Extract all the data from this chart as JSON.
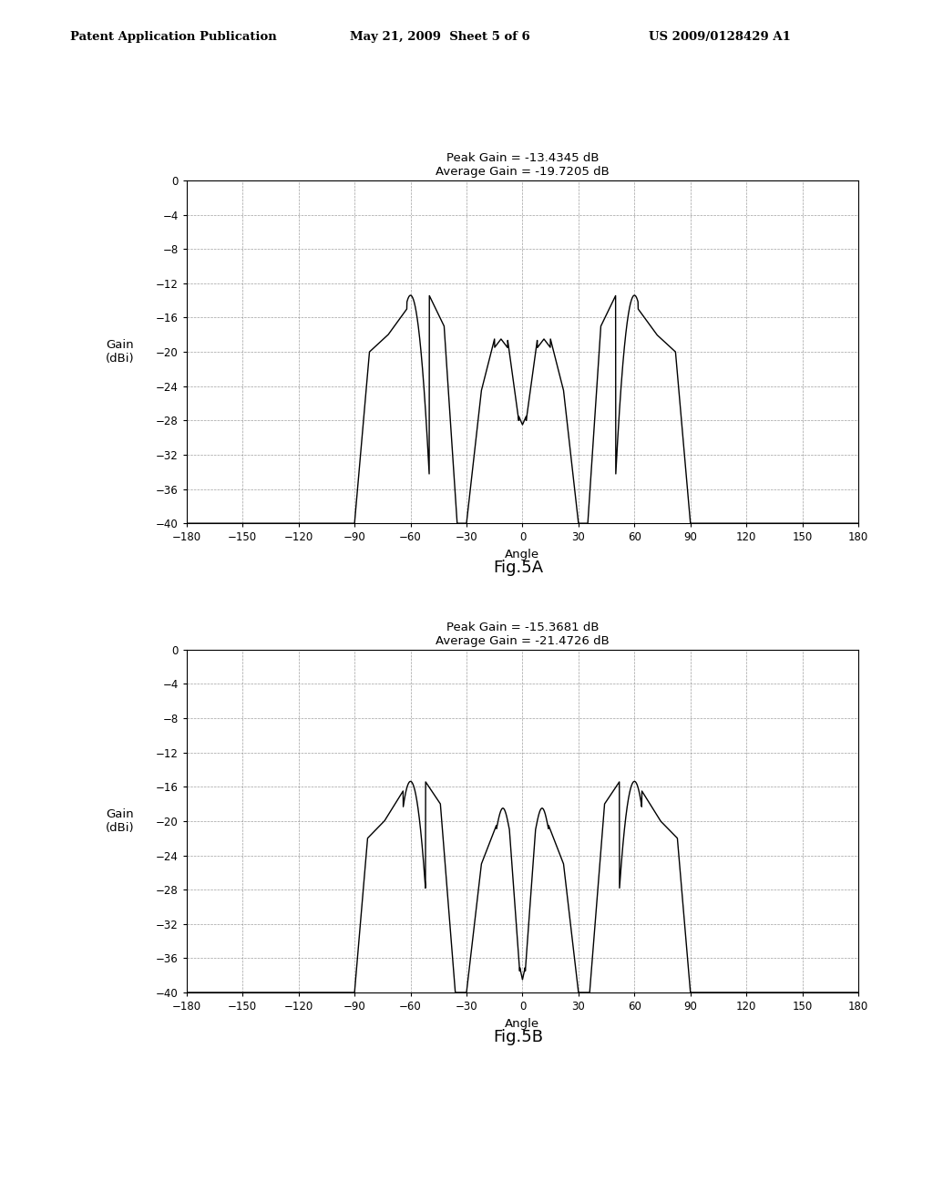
{
  "fig5a": {
    "title_line1": "Peak Gain = -13.4345 dB",
    "title_line2": "Average Gain = -19.7205 dB",
    "fig_label": "Fig.5A"
  },
  "fig5b": {
    "title_line1": "Peak Gain = -15.3681 dB",
    "title_line2": "Average Gain = -21.4726 dB",
    "fig_label": "Fig.5B"
  },
  "xlabel": "Angle",
  "ylabel_line1": "Gain",
  "ylabel_line2": "(dBi)",
  "xlim": [
    -180,
    180
  ],
  "ylim": [
    -40,
    0
  ],
  "xticks": [
    -180,
    -150,
    -120,
    -90,
    -60,
    -30,
    0,
    30,
    60,
    90,
    120,
    150,
    180
  ],
  "yticks": [
    0,
    -4,
    -8,
    -12,
    -16,
    -20,
    -24,
    -28,
    -32,
    -36,
    -40
  ],
  "background_color": "#ffffff",
  "line_color": "#000000",
  "header_left": "Patent Application Publication",
  "header_center": "May 21, 2009  Sheet 5 of 6",
  "header_right": "US 2009/0128429 A1"
}
